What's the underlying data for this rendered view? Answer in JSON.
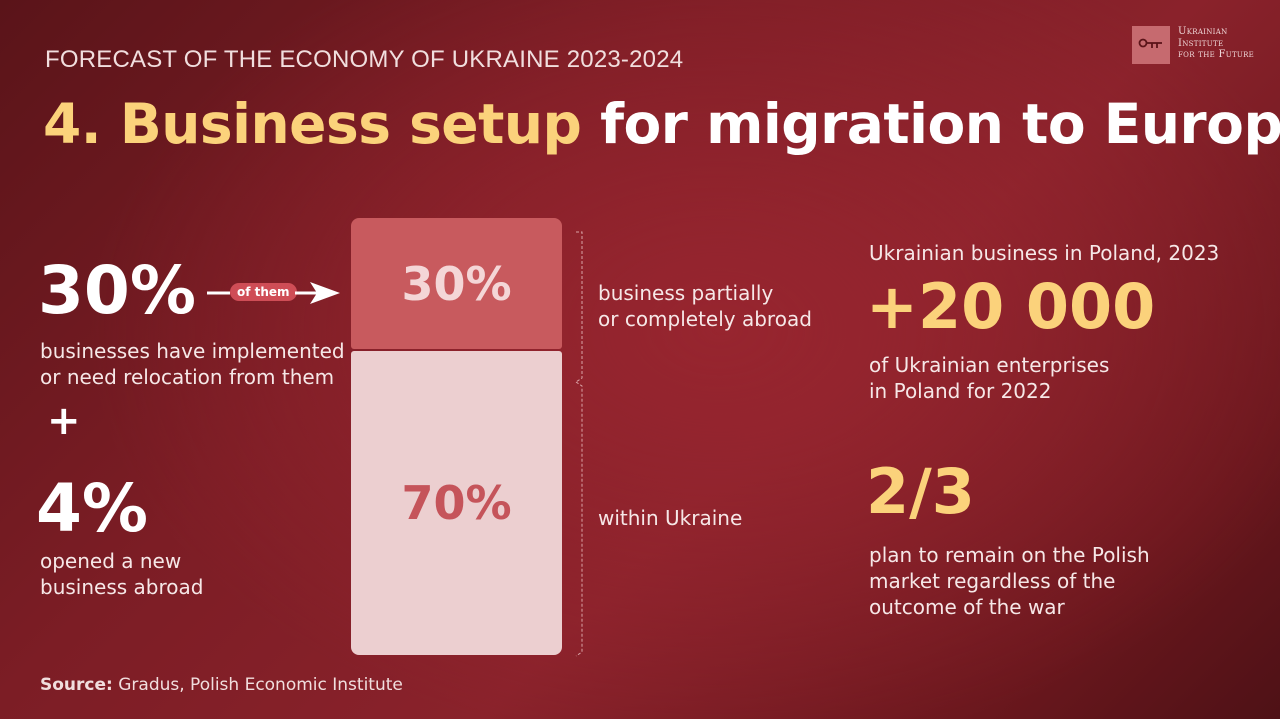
{
  "header": {
    "kicker": "FORECAST OF THE ECONOMY OF UKRAINE 2023-2024",
    "title_number": "4.",
    "title_highlight": "Business setup",
    "title_rest": "for migration to Europe"
  },
  "logo": {
    "line1": "Ukrainian",
    "line2": "Institute",
    "line3": "for the Future"
  },
  "left": {
    "stat1_value": "30%",
    "stat1_pill": "of them",
    "stat1_text_line1": "businesses have implemented",
    "stat1_text_line2": "or need relocation from them",
    "plus": "+",
    "stat2_value": "4%",
    "stat2_text_line1": "opened a new",
    "stat2_text_line2": "business abroad"
  },
  "chart_data": {
    "type": "bar",
    "stacked": true,
    "categories": [
      "business partially or completely abroad",
      "within Ukraine"
    ],
    "values": [
      30,
      70
    ],
    "value_labels": [
      "30%",
      "70%"
    ],
    "segment_label_lines": [
      [
        "business partially",
        "or completely abroad"
      ],
      [
        "within Ukraine"
      ]
    ],
    "colors": [
      "#c85a5e",
      "#eccfd0"
    ],
    "label_colors": [
      "#f4d6d7",
      "#c5545a"
    ]
  },
  "right": {
    "heading": "Ukrainian business in Poland, 2023",
    "stat1_value": "+20 000",
    "stat1_text_line1": "of Ukrainian enterprises",
    "stat1_text_line2": "in Poland for 2022",
    "stat2_value": "2/3",
    "stat2_text_line1": "plan to remain on the Polish",
    "stat2_text_line2": "market regardless of the",
    "stat2_text_line3": "outcome of the war"
  },
  "footer": {
    "source_label": "Source:",
    "source_text": "Gradus, Polish Economic Institute"
  },
  "colors": {
    "accent_yellow": "#fbd27b",
    "bar_dark": "#c85a5e",
    "bar_light": "#eccfd0",
    "background": "#7c1d25"
  }
}
